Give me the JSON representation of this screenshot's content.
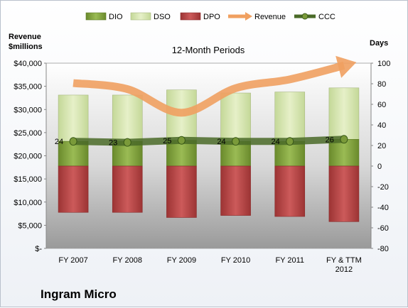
{
  "chart_data": {
    "type": "bar",
    "subtitle": "12-Month Periods",
    "company": "Ingram Micro",
    "y_left_label": [
      "Revenue",
      "$millions"
    ],
    "y_right_label": "Days",
    "y_left_ticks": [
      "$40,000",
      "$35,000",
      "$30,000",
      "$25,000",
      "$20,000",
      "$15,000",
      "$10,000",
      "$5,000",
      "$-"
    ],
    "y_left_lim": [
      0,
      40000
    ],
    "y_right_lim": [
      -80,
      100
    ],
    "y_right_ticks": [
      100,
      80,
      60,
      40,
      20,
      0,
      -20,
      -40,
      -60,
      -80
    ],
    "categories": [
      "FY 2007",
      "FY 2008",
      "FY 2009",
      "FY 2010",
      "FY 2011",
      "FY & TTM 2012"
    ],
    "legend": [
      "DIO",
      "DSO",
      "DPO",
      "Revenue",
      "CCC"
    ],
    "legend_position": "top",
    "colors": {
      "dio": "#7a9a3a",
      "dso": "#d8e8b0",
      "dpo": "#b84848",
      "revenue": "#f0a060",
      "ccc": "#4a6a28"
    },
    "series": [
      {
        "name": "DIO",
        "values": [
          24,
          24,
          25,
          24,
          24,
          26
        ]
      },
      {
        "name": "DSO",
        "values": [
          45,
          45,
          49,
          47,
          48,
          50
        ]
      },
      {
        "name": "DPO",
        "values": [
          -45,
          -45,
          -50,
          -48,
          -49,
          -54
        ]
      },
      {
        "name": "Revenue",
        "values": [
          35700,
          34400,
          29300,
          34600,
          36500,
          39500
        ]
      },
      {
        "name": "CCC",
        "values": [
          24,
          23,
          25,
          24,
          24,
          26
        ]
      }
    ],
    "ccc_labels": [
      "24",
      "23",
      "25",
      "24",
      "24",
      "26"
    ]
  }
}
